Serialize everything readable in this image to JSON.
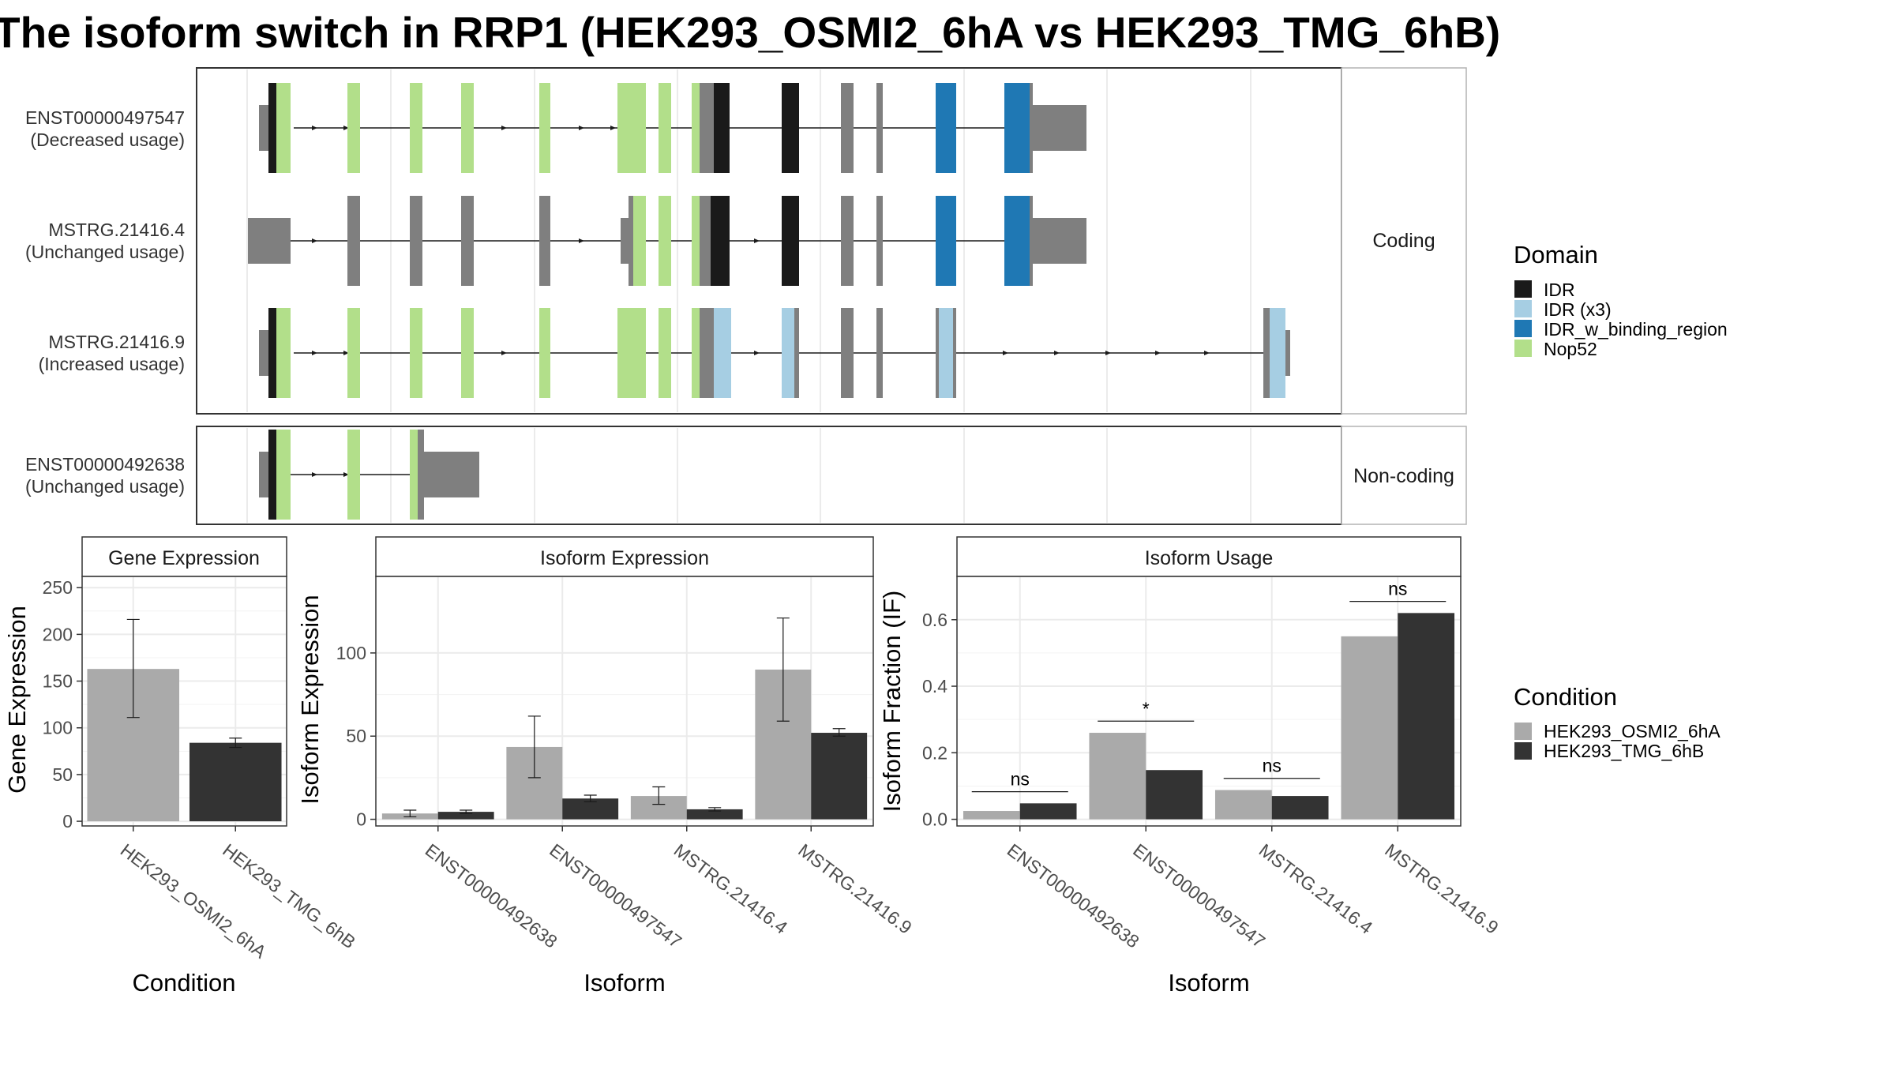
{
  "title": "The isoform switch in RRP1 (HEK293_OSMI2_6hA vs HEK293_TMG_6hB)",
  "colors": {
    "exon_grey": "#7f7f7f",
    "IDR": "#1a1a1a",
    "IDR (x3)": "#a6cee3",
    "IDR_w_binding_region": "#1f78b4",
    "Nop52": "#b2df8a",
    "HEK293_OSMI2_6hA": "#aaaaaa",
    "HEK293_TMG_6hB": "#333333"
  },
  "isoform_structure": {
    "facets": [
      "Coding",
      "Non-coding"
    ],
    "transcripts": [
      {
        "name": "ENST00000497547",
        "usage": "(Decreased usage)",
        "facet": "Coding"
      },
      {
        "name": "MSTRG.21416.4",
        "usage": "(Unchanged usage)",
        "facet": "Coding"
      },
      {
        "name": "MSTRG.21416.9",
        "usage": "(Increased usage)",
        "facet": "Coding"
      },
      {
        "name": "ENST00000492638",
        "usage": "(Unchanged usage)",
        "facet": "Non-coding"
      }
    ]
  },
  "legend_domain": {
    "title": "Domain",
    "items": [
      "IDR",
      "IDR (x3)",
      "IDR_w_binding_region",
      "Nop52"
    ]
  },
  "legend_condition": {
    "title": "Condition",
    "items": [
      "HEK293_OSMI2_6hA",
      "HEK293_TMG_6hB"
    ]
  },
  "chart_data": [
    {
      "type": "bar",
      "title": "Gene Expression",
      "xlabel": "Condition",
      "ylabel": "Gene Expression",
      "categories": [
        "HEK293_OSMI2_6hA",
        "HEK293_TMG_6hB"
      ],
      "values": [
        163,
        84
      ],
      "errors": [
        [
          111,
          216
        ],
        [
          79,
          89
        ]
      ],
      "ylim": [
        -5,
        262
      ],
      "yticks": [
        0,
        50,
        100,
        150,
        200,
        250
      ]
    },
    {
      "type": "bar",
      "title": "Isoform Expression",
      "xlabel": "Isoform",
      "ylabel": "Isoform Expression",
      "categories": [
        "ENST00000492638",
        "ENST00000497547",
        "MSTRG.21416.4",
        "MSTRG.21416.9"
      ],
      "series": [
        {
          "name": "HEK293_OSMI2_6hA",
          "values": [
            3.5,
            43.5,
            14,
            90
          ],
          "errors": [
            [
              1.5,
              5.5
            ],
            [
              25,
              62
            ],
            [
              9,
              19.5
            ],
            [
              59,
              121
            ]
          ]
        },
        {
          "name": "HEK293_TMG_6hB",
          "values": [
            4.5,
            12.5,
            6,
            52
          ],
          "errors": [
            [
              3.5,
              5.5
            ],
            [
              10.5,
              14.5
            ],
            [
              5,
              7
            ],
            [
              50,
              54.5
            ]
          ]
        }
      ],
      "ylim": [
        -4,
        146
      ],
      "yticks": [
        0,
        50,
        100
      ]
    },
    {
      "type": "bar",
      "title": "Isoform Usage",
      "xlabel": "Isoform",
      "ylabel": "Isoform Fraction (IF)",
      "categories": [
        "ENST00000492638",
        "ENST00000497547",
        "MSTRG.21416.4",
        "MSTRG.21416.9"
      ],
      "series": [
        {
          "name": "HEK293_OSMI2_6hA",
          "values": [
            0.025,
            0.26,
            0.088,
            0.55
          ]
        },
        {
          "name": "HEK293_TMG_6hB",
          "values": [
            0.048,
            0.148,
            0.07,
            0.62
          ]
        }
      ],
      "significance": [
        "ns",
        "*",
        "ns",
        "ns"
      ],
      "ylim": [
        -0.02,
        0.73
      ],
      "yticks": [
        "0.0",
        "0.2",
        "0.4",
        "0.6"
      ]
    }
  ]
}
